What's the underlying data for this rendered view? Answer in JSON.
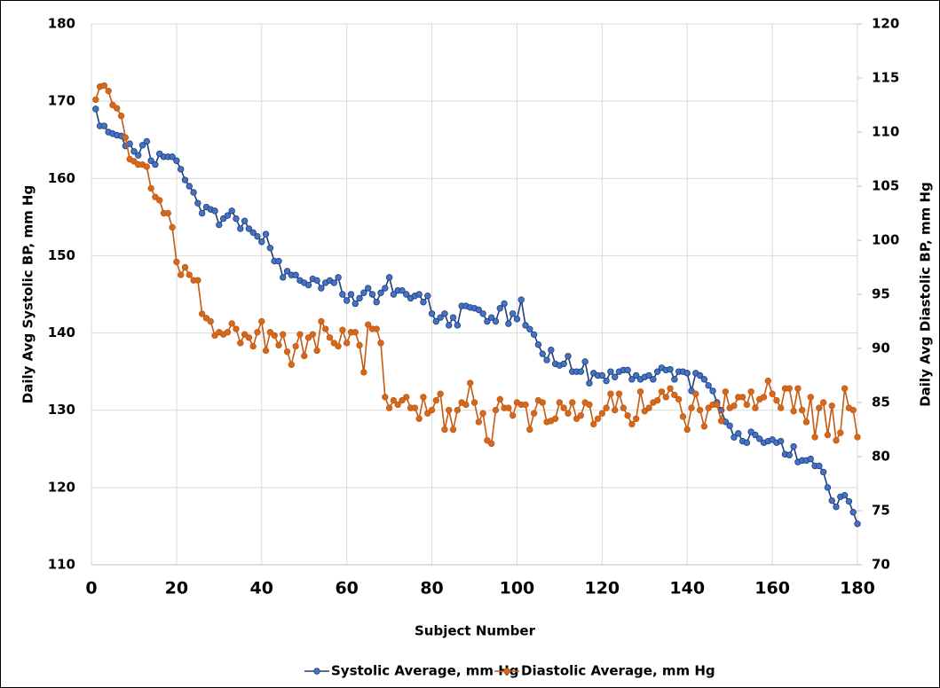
{
  "chart_data": {
    "type": "line",
    "x_label": "Subject Number",
    "y_label": "Daily Avg Systolic BP, mm Hg",
    "y2_label": "Daily Avg Diastolic BP, mm Hg",
    "xlim": [
      0,
      180
    ],
    "xticks": [
      0,
      20,
      40,
      60,
      80,
      100,
      120,
      140,
      160,
      180
    ],
    "ylim": [
      110,
      180
    ],
    "yticks": [
      110,
      120,
      130,
      140,
      150,
      160,
      170,
      180
    ],
    "y2lim": [
      70,
      120
    ],
    "y2ticks": [
      70,
      75,
      80,
      85,
      90,
      95,
      100,
      105,
      110,
      115,
      120
    ],
    "grid": true,
    "legend": "bottom",
    "x": [
      1,
      2,
      3,
      4,
      5,
      6,
      7,
      8,
      9,
      10,
      11,
      12,
      13,
      14,
      15,
      16,
      17,
      18,
      19,
      20,
      21,
      22,
      23,
      24,
      25,
      26,
      27,
      28,
      29,
      30,
      31,
      32,
      33,
      34,
      35,
      36,
      37,
      38,
      39,
      40,
      41,
      42,
      43,
      44,
      45,
      46,
      47,
      48,
      49,
      50,
      51,
      52,
      53,
      54,
      55,
      56,
      57,
      58,
      59,
      60,
      61,
      62,
      63,
      64,
      65,
      66,
      67,
      68,
      69,
      70,
      71,
      72,
      73,
      74,
      75,
      76,
      77,
      78,
      79,
      80,
      81,
      82,
      83,
      84,
      85,
      86,
      87,
      88,
      89,
      90,
      91,
      92,
      93,
      94,
      95,
      96,
      97,
      98,
      99,
      100,
      101,
      102,
      103,
      104,
      105,
      106,
      107,
      108,
      109,
      110,
      111,
      112,
      113,
      114,
      115,
      116,
      117,
      118,
      119,
      120,
      121,
      122,
      123,
      124,
      125,
      126,
      127,
      128,
      129,
      130,
      131,
      132,
      133,
      134,
      135,
      136,
      137,
      138,
      139,
      140,
      141,
      142,
      143,
      144,
      145,
      146,
      147,
      148,
      149,
      150,
      151,
      152,
      153,
      154,
      155,
      156,
      157,
      158,
      159,
      160,
      161,
      162,
      163,
      164,
      165,
      166,
      167,
      168,
      169,
      170,
      171,
      172,
      173,
      174,
      175,
      176,
      177,
      178,
      179,
      180
    ],
    "series": [
      {
        "name": "Systolic Average, mm Hg",
        "color": "#4472c4",
        "line_color": "#1f3f7a",
        "axis": "y",
        "values": [
          169,
          166.8,
          166.8,
          166,
          165.8,
          165.6,
          165.5,
          164.2,
          164.5,
          163.5,
          163,
          164.3,
          164.8,
          162.3,
          161.8,
          163.2,
          162.8,
          162.8,
          162.8,
          162.3,
          161.2,
          159.8,
          159,
          158.2,
          156.8,
          155.5,
          156.3,
          156,
          155.8,
          154,
          154.8,
          155.2,
          155.8,
          154.8,
          153.5,
          154.5,
          153.5,
          153,
          152.5,
          151.8,
          152.8,
          151,
          149.3,
          149.3,
          147.2,
          148,
          147.5,
          147.5,
          146.8,
          146.5,
          146.2,
          147,
          146.8,
          145.8,
          146.5,
          146.8,
          146.5,
          147.2,
          145,
          144.2,
          145,
          143.8,
          144.5,
          145.2,
          145.8,
          145,
          144,
          145.2,
          145.8,
          147.2,
          145,
          145.5,
          145.5,
          145,
          144.5,
          144.8,
          145,
          144,
          144.8,
          142.5,
          141.5,
          142,
          142.5,
          141,
          142,
          141,
          143.5,
          143.5,
          143.3,
          143.2,
          143,
          142.5,
          141.5,
          142,
          141.5,
          143.2,
          143.8,
          141.2,
          142.5,
          141.8,
          144.3,
          141,
          140.5,
          139.8,
          138.5,
          137.3,
          136.5,
          137.8,
          136,
          135.8,
          136,
          137,
          135,
          135,
          135,
          136.3,
          133.5,
          134.8,
          134.5,
          134.5,
          133.8,
          135,
          134.3,
          135,
          135.2,
          135.2,
          134,
          134.5,
          134,
          134.3,
          134.5,
          134,
          135,
          135.5,
          135.2,
          135.3,
          134,
          135,
          135,
          134.8,
          132.5,
          134.8,
          134.5,
          134,
          133.2,
          132.5,
          131,
          130,
          128.5,
          128,
          126.5,
          127,
          126,
          125.8,
          127.2,
          126.8,
          126.3,
          125.8,
          126,
          126.2,
          125.8,
          126,
          124.3,
          124.2,
          125.3,
          123.3,
          123.5,
          123.5,
          123.7,
          122.8,
          122.8,
          122,
          120,
          118.3,
          117.5,
          118.8,
          119,
          118.2,
          116.8,
          115.3
        ]
      },
      {
        "name": "Diastolic Average, mm Hg",
        "color": "#d2691e",
        "line_color": "#c55a11",
        "axis": "y2",
        "values": [
          113,
          114.2,
          114.3,
          113.8,
          112.5,
          112.2,
          111.5,
          109.5,
          107.5,
          107.3,
          107,
          107,
          106.8,
          104.8,
          104,
          103.7,
          102.5,
          102.5,
          101.2,
          98,
          96.8,
          97.5,
          96.8,
          96.3,
          96.3,
          93.2,
          92.8,
          92.5,
          91.2,
          91.5,
          91.3,
          91.5,
          92.3,
          91.8,
          90.5,
          91.3,
          91,
          90.2,
          91.5,
          92.5,
          89.8,
          91.5,
          91.2,
          90.3,
          91.3,
          89.7,
          88.5,
          90.2,
          91.3,
          89.3,
          91,
          91.3,
          89.8,
          92.5,
          91.8,
          91,
          90.5,
          90.2,
          91.7,
          90.5,
          91.5,
          91.5,
          90.3,
          87.8,
          92.2,
          91.8,
          91.8,
          90.5,
          85.5,
          84.5,
          85.2,
          84.8,
          85.2,
          85.5,
          84.5,
          84.5,
          83.5,
          85.5,
          84,
          84.3,
          85.2,
          85.8,
          82.5,
          84.3,
          82.5,
          84.3,
          85,
          84.8,
          86.8,
          85,
          83.2,
          84,
          81.5,
          81.2,
          84.3,
          85.3,
          84.5,
          84.5,
          83.8,
          85,
          84.8,
          84.8,
          82.5,
          84,
          85.2,
          85,
          83.2,
          83.3,
          83.5,
          85,
          84.5,
          84,
          85,
          83.5,
          83.8,
          85,
          84.8,
          83,
          83.5,
          84,
          84.5,
          85.8,
          84.3,
          85.8,
          84.5,
          83.8,
          83,
          83.5,
          86,
          84.2,
          84.5,
          85,
          85.2,
          86,
          85.5,
          86.3,
          85.7,
          85.3,
          83.7,
          82.5,
          84.5,
          85.8,
          84.3,
          82.8,
          84.5,
          84.8,
          84.8,
          83.3,
          86,
          84.5,
          84.7,
          85.5,
          85.5,
          84.8,
          86,
          84.5,
          85.3,
          85.5,
          87,
          85.8,
          85.2,
          84.5,
          86.3,
          86.3,
          84.2,
          86.3,
          84.3,
          83.2,
          85.5,
          81.8,
          84.5,
          85,
          82,
          84.7,
          81.5,
          82.2,
          86.3,
          84.5,
          84.3,
          81.8
        ]
      }
    ]
  }
}
